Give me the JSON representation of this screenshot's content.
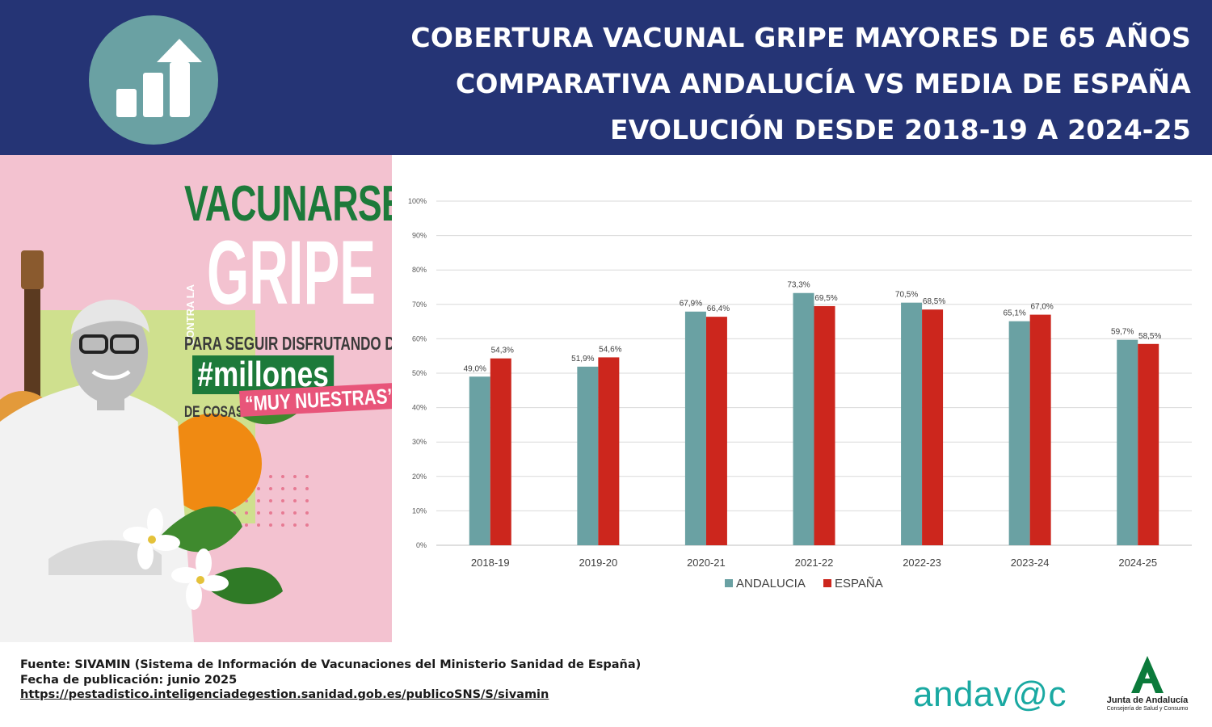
{
  "header": {
    "icon": "bar-chart-growth-icon",
    "title_lines": [
      "COBERTURA VACUNAL GRIPE MAYORES DE 65 AÑOS",
      "COMPARATIVA ANDALUCÍA VS MEDIA DE ESPAÑA",
      "EVOLUCIÓN DESDE 2018-19 A 2024-25"
    ]
  },
  "poster": {
    "vacunarse": "VACUNARSE",
    "contra_la": "CONTRA LA",
    "gripe": "GRIPE",
    "para_seguir": "PARA SEGUIR DISFRUTANDO DE",
    "millones": "#millones",
    "de_cosas": "DE COSAS",
    "muy_nuestras": "“MUY NUESTRAS”"
  },
  "chart_data": {
    "type": "bar",
    "categories": [
      "2018-19",
      "2019-20",
      "2020-21",
      "2021-22",
      "2022-23",
      "2023-24",
      "2024-25"
    ],
    "series": [
      {
        "name": "ANDALUCIA",
        "color": "#6aa1a3",
        "values": [
          49.0,
          51.9,
          67.9,
          73.3,
          70.5,
          65.1,
          59.7
        ],
        "labels": [
          "49,0%",
          "51,9%",
          "67,9%",
          "73,3%",
          "70,5%",
          "65,1%",
          "59,7%"
        ]
      },
      {
        "name": "ESPAÑA",
        "color": "#cc261d",
        "values": [
          54.3,
          54.6,
          66.4,
          69.5,
          68.5,
          67.0,
          58.5
        ],
        "labels": [
          "54,3%",
          "54,6%",
          "66,4%",
          "69,5%",
          "68,5%",
          "67,0%",
          "58,5%"
        ]
      }
    ],
    "ylim": [
      0,
      100
    ],
    "yticks": [
      "0%",
      "10%",
      "20%",
      "30%",
      "40%",
      "50%",
      "60%",
      "70%",
      "80%",
      "90%",
      "100%"
    ],
    "grid": true,
    "legend": "bottom"
  },
  "footer": {
    "source": "Fuente: SIVAMIN (Sistema de Información de Vacunaciones del Ministerio Sanidad de España)",
    "date": "Fecha de publicación: junio 2025",
    "url": "https://pestadistico.inteligenciadegestion.sanidad.gob.es/publicoSNS/S/sivamin"
  },
  "logos": {
    "andavac": "andav@c",
    "junta_name": "Junta de Andalucía",
    "junta_sub": "Consejería de Salud y Consumo"
  }
}
